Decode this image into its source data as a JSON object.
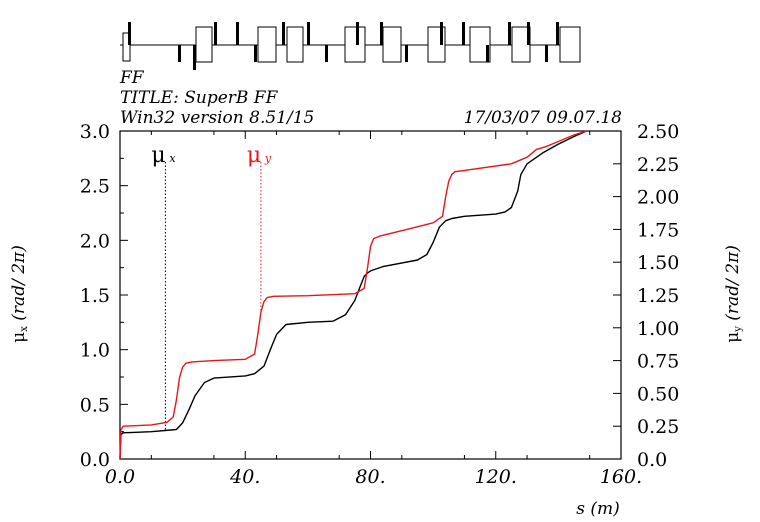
{
  "header": {
    "line1": "FF",
    "line2": "TITLE: SuperB FF",
    "line3": "Win32 version 8.51/15",
    "date": "17/03/07",
    "time": "09.07.18"
  },
  "labels": {
    "left_axis": "μx (rad/ 2π)",
    "right_axis": "μy (rad/ 2π)",
    "x_axis": "s (m)",
    "mux": "μ x",
    "muy": "μ y"
  },
  "colors": {
    "mux": "#000000",
    "muy": "#e8161c",
    "axes": "#000000"
  },
  "chart_data": {
    "type": "line",
    "xlim": [
      0,
      160
    ],
    "ylim_left": [
      0,
      3.0
    ],
    "ylim_right": [
      0,
      2.5
    ],
    "x_ticks": [
      "0.0",
      "40.",
      "80.",
      "120.",
      "160."
    ],
    "x_tick_values": [
      0,
      40,
      80,
      120,
      160
    ],
    "y_left_ticks": [
      "0.0",
      "0.5",
      "1.0",
      "1.5",
      "2.0",
      "2.5",
      "3.0"
    ],
    "y_left_tick_values": [
      0,
      0.5,
      1.0,
      1.5,
      2.0,
      2.5,
      3.0
    ],
    "y_right_ticks": [
      "0.0",
      "0.25",
      "0.50",
      "0.75",
      "1.00",
      "1.25",
      "1.50",
      "1.75",
      "2.00",
      "2.25",
      "2.50"
    ],
    "y_right_tick_values": [
      0,
      0.25,
      0.5,
      0.75,
      1.0,
      1.25,
      1.5,
      1.75,
      2.0,
      2.25,
      2.5
    ],
    "grid": false,
    "series": [
      {
        "name": "μ x",
        "axis": "left",
        "color": "#000000",
        "x": [
          0,
          0.3,
          1,
          10,
          18,
          20,
          22,
          24,
          27,
          30,
          40,
          43,
          46,
          48,
          50,
          53,
          60,
          68,
          72,
          75,
          77,
          78,
          79,
          80,
          84,
          95,
          98,
          100,
          102,
          104,
          106,
          110,
          120,
          123,
          125,
          127,
          128,
          130,
          135,
          140,
          145,
          149
        ],
        "y": [
          0.0,
          0.22,
          0.24,
          0.25,
          0.27,
          0.33,
          0.45,
          0.58,
          0.7,
          0.74,
          0.76,
          0.78,
          0.85,
          1.0,
          1.14,
          1.23,
          1.25,
          1.26,
          1.32,
          1.45,
          1.6,
          1.67,
          1.7,
          1.72,
          1.76,
          1.82,
          1.87,
          1.98,
          2.12,
          2.18,
          2.2,
          2.22,
          2.24,
          2.26,
          2.3,
          2.45,
          2.6,
          2.7,
          2.8,
          2.88,
          2.95,
          3.0
        ]
      },
      {
        "name": "μ y",
        "axis": "right",
        "color": "#e8161c",
        "x": [
          0,
          0.3,
          1,
          10,
          15,
          17,
          18,
          19,
          20,
          21,
          23,
          30,
          40,
          43,
          44,
          45,
          46,
          47,
          49,
          60,
          75,
          78,
          79,
          80,
          81,
          83,
          90,
          100,
          103,
          104,
          105,
          106,
          107,
          110,
          125,
          130,
          133,
          136,
          140,
          145,
          149
        ],
        "y": [
          0.0,
          0.22,
          0.25,
          0.26,
          0.28,
          0.32,
          0.45,
          0.62,
          0.7,
          0.73,
          0.74,
          0.75,
          0.76,
          0.8,
          0.95,
          1.12,
          1.2,
          1.23,
          1.24,
          1.245,
          1.26,
          1.3,
          1.45,
          1.62,
          1.68,
          1.7,
          1.74,
          1.8,
          1.85,
          2.0,
          2.12,
          2.17,
          2.19,
          2.2,
          2.25,
          2.3,
          2.36,
          2.38,
          2.42,
          2.47,
          2.5
        ]
      }
    ],
    "markers": [
      {
        "name": "μ x",
        "s": 14.5
      },
      {
        "name": "μ y",
        "s": 45.0
      }
    ]
  }
}
